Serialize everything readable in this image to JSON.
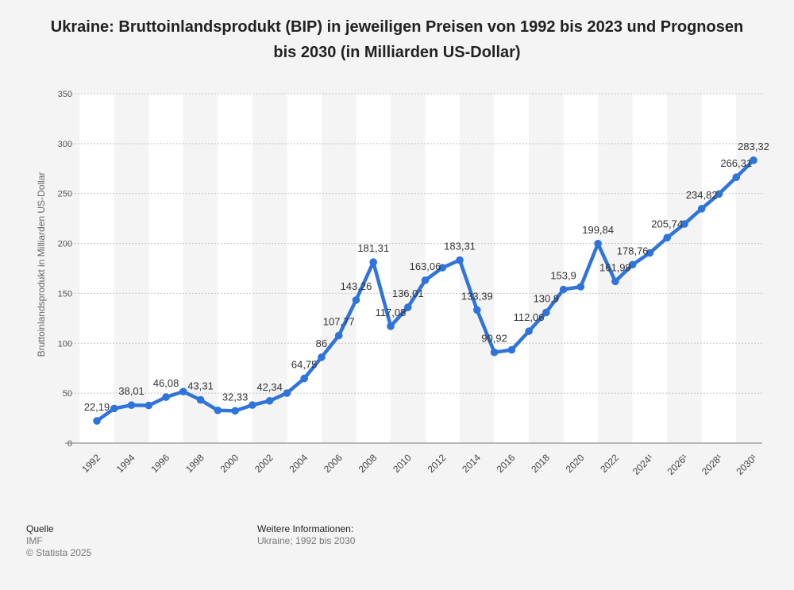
{
  "title": "Ukraine: Bruttoinlandsprodukt (BIP) in jeweiligen Preisen von 1992 bis 2023 und Prognosen bis 2030 (in Milliarden US-Dollar)",
  "chart_data": {
    "type": "line",
    "title": "Ukraine: Bruttoinlandsprodukt (BIP) in jeweiligen Preisen von 1992 bis 2023 und Prognosen bis 2030 (in Milliarden US-Dollar)",
    "xlabel": "",
    "ylabel": "Bruttoinlandsprodukt in Milliarden US-Dollar",
    "ylim": [
      0,
      350
    ],
    "yticks": [
      "0",
      "50",
      "100",
      "150",
      "200",
      "250",
      "300",
      "350"
    ],
    "x": [
      1992,
      1993,
      1994,
      1995,
      1996,
      1997,
      1998,
      1999,
      2000,
      2001,
      2002,
      2003,
      2004,
      2005,
      2006,
      2007,
      2008,
      2009,
      2010,
      2011,
      2012,
      2013,
      2014,
      2015,
      2016,
      2017,
      2018,
      2019,
      2020,
      2021,
      2022,
      2023,
      2024,
      2025,
      2026,
      2027,
      2028,
      2029,
      2030
    ],
    "xtick_labels": [
      "1992",
      "1994",
      "1996",
      "1998",
      "2000",
      "2002",
      "2004",
      "2006",
      "2008",
      "2010",
      "2012",
      "2014",
      "2016",
      "2018",
      "2020",
      "2022",
      "2024¹",
      "2026¹",
      "2028¹",
      "2030¹"
    ],
    "series": [
      {
        "name": "BIP",
        "color": "#2f74d9",
        "values": [
          22.19,
          34.7,
          38.01,
          37.7,
          46.08,
          51.6,
          43.31,
          32.8,
          32.33,
          38.1,
          42.34,
          50.1,
          64.75,
          86,
          107.77,
          143.26,
          181.31,
          117.08,
          136.01,
          163.06,
          175.7,
          183.31,
          133.39,
          90.92,
          93.4,
          112.06,
          130.9,
          153.9,
          156.6,
          199.84,
          161.99,
          178.76,
          190.5,
          205.74,
          219.5,
          234.82,
          249.5,
          266.31,
          283.32
        ],
        "labels": [
          "22,19",
          null,
          "38,01",
          null,
          "46,08",
          null,
          "43,31",
          null,
          "32,33",
          null,
          "42,34",
          null,
          "64,75",
          "86",
          "107,77",
          "143,26",
          "181,31",
          "117,08",
          "136,01",
          "163,06",
          null,
          "183,31",
          "133,39",
          "90,92",
          null,
          "112,06",
          "130,9",
          "153,9",
          null,
          "199,84",
          "161,99",
          "178,76",
          null,
          "205,74",
          null,
          "234,82",
          null,
          "266,31",
          "283,32"
        ]
      }
    ]
  },
  "footer": {
    "source_heading": "Quelle",
    "source_value": "IMF",
    "copyright": "© Statista 2025",
    "info_heading": "Weitere Informationen:",
    "info_value": "Ukraine; 1992 bis 2030"
  }
}
